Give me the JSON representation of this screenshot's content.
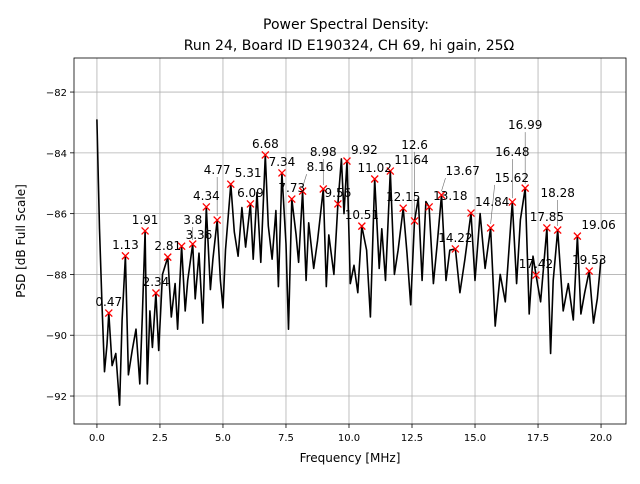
{
  "chart_data": {
    "type": "line",
    "title_line1": "Power Spectral Density:",
    "title_line2": "Run 24, Board ID E190324, CH 69, hi gain, 25Ω",
    "xlabel": "Frequency [MHz]",
    "ylabel": "PSD [dB Full Scale]",
    "xlim": [
      -0.91,
      20.99
    ],
    "ylim": [
      -92.92,
      -80.88
    ],
    "grid": true,
    "xticks": [
      0.0,
      2.5,
      5.0,
      7.5,
      10.0,
      12.5,
      15.0,
      17.5,
      20.0
    ],
    "xtick_labels": [
      "0.0",
      "2.5",
      "5.0",
      "7.5",
      "10.0",
      "12.5",
      "15.0",
      "17.5",
      "20.0"
    ],
    "yticks": [
      -82,
      -84,
      -86,
      -88,
      -90,
      -92
    ],
    "ytick_labels": [
      "−82",
      "−84",
      "−86",
      "−88",
      "−90",
      "−92"
    ],
    "line_color": "#000000",
    "marker_color": "#ff0000",
    "trace": [
      [
        0,
        -82.9
      ],
      [
        0.1,
        -86.5
      ],
      [
        0.2,
        -89.0
      ],
      [
        0.3,
        -91.2
      ],
      [
        0.4,
        -90.3
      ],
      [
        0.47,
        -89.27
      ],
      [
        0.6,
        -91.0
      ],
      [
        0.75,
        -90.6
      ],
      [
        0.9,
        -92.3
      ],
      [
        1.0,
        -89.5
      ],
      [
        1.13,
        -87.39
      ],
      [
        1.25,
        -91.3
      ],
      [
        1.4,
        -90.5
      ],
      [
        1.55,
        -89.8
      ],
      [
        1.7,
        -91.6
      ],
      [
        1.8,
        -89.4
      ],
      [
        1.91,
        -86.57
      ],
      [
        2.0,
        -91.6
      ],
      [
        2.1,
        -89.2
      ],
      [
        2.2,
        -90.4
      ],
      [
        2.34,
        -88.61
      ],
      [
        2.45,
        -90.5
      ],
      [
        2.6,
        -88.0
      ],
      [
        2.81,
        -87.43
      ],
      [
        2.95,
        -89.4
      ],
      [
        3.1,
        -88.3
      ],
      [
        3.2,
        -89.8
      ],
      [
        3.36,
        -87.07
      ],
      [
        3.5,
        -89.2
      ],
      [
        3.6,
        -88.2
      ],
      [
        3.8,
        -87.0
      ],
      [
        3.9,
        -88.8
      ],
      [
        4.05,
        -87.3
      ],
      [
        4.2,
        -89.6
      ],
      [
        4.34,
        -85.78
      ],
      [
        4.5,
        -88.5
      ],
      [
        4.6,
        -87.5
      ],
      [
        4.77,
        -86.21
      ],
      [
        4.9,
        -88.2
      ],
      [
        5.0,
        -89.1
      ],
      [
        5.1,
        -87.2
      ],
      [
        5.31,
        -85.03
      ],
      [
        5.45,
        -86.6
      ],
      [
        5.6,
        -87.4
      ],
      [
        5.75,
        -85.8
      ],
      [
        5.9,
        -87.1
      ],
      [
        6.09,
        -85.68
      ],
      [
        6.2,
        -87.5
      ],
      [
        6.35,
        -85.3
      ],
      [
        6.5,
        -87.6
      ],
      [
        6.68,
        -84.07
      ],
      [
        6.8,
        -86.4
      ],
      [
        6.95,
        -87.5
      ],
      [
        7.1,
        -85.9
      ],
      [
        7.2,
        -88.4
      ],
      [
        7.34,
        -84.66
      ],
      [
        7.5,
        -87.0
      ],
      [
        7.6,
        -89.8
      ],
      [
        7.73,
        -85.52
      ],
      [
        7.9,
        -86.7
      ],
      [
        8.0,
        -87.6
      ],
      [
        8.16,
        -85.26
      ],
      [
        8.3,
        -88.2
      ],
      [
        8.4,
        -86.3
      ],
      [
        8.6,
        -87.8
      ],
      [
        8.75,
        -86.9
      ],
      [
        8.98,
        -85.19
      ],
      [
        9.1,
        -88.4
      ],
      [
        9.2,
        -86.7
      ],
      [
        9.4,
        -88.0
      ],
      [
        9.56,
        -85.68
      ],
      [
        9.7,
        -84.2
      ],
      [
        9.8,
        -86.0
      ],
      [
        9.92,
        -84.27
      ],
      [
        10.05,
        -88.3
      ],
      [
        10.2,
        -87.7
      ],
      [
        10.35,
        -88.6
      ],
      [
        10.51,
        -86.41
      ],
      [
        10.7,
        -87.2
      ],
      [
        10.85,
        -89.4
      ],
      [
        11.02,
        -84.86
      ],
      [
        11.2,
        -87.8
      ],
      [
        11.3,
        -86.5
      ],
      [
        11.45,
        -88.2
      ],
      [
        11.64,
        -84.6
      ],
      [
        11.8,
        -88.0
      ],
      [
        11.95,
        -87.2
      ],
      [
        12.15,
        -85.82
      ],
      [
        12.3,
        -87.3
      ],
      [
        12.45,
        -89.0
      ],
      [
        12.6,
        -86.24
      ],
      [
        12.75,
        -85.5
      ],
      [
        12.9,
        -88.2
      ],
      [
        13.05,
        -85.6
      ],
      [
        13.18,
        -85.78
      ],
      [
        13.35,
        -88.3
      ],
      [
        13.5,
        -87.0
      ],
      [
        13.67,
        -85.39
      ],
      [
        13.85,
        -88.2
      ],
      [
        14.0,
        -87.2
      ],
      [
        14.22,
        -87.16
      ],
      [
        14.4,
        -88.6
      ],
      [
        14.6,
        -87.5
      ],
      [
        14.84,
        -85.98
      ],
      [
        15.0,
        -88.2
      ],
      [
        15.2,
        -86.0
      ],
      [
        15.4,
        -87.8
      ],
      [
        15.62,
        -86.47
      ],
      [
        15.8,
        -89.7
      ],
      [
        16.0,
        -88.0
      ],
      [
        16.2,
        -88.9
      ],
      [
        16.48,
        -85.62
      ],
      [
        16.65,
        -88.3
      ],
      [
        16.8,
        -86.2
      ],
      [
        16.99,
        -85.16
      ],
      [
        17.15,
        -89.3
      ],
      [
        17.3,
        -87.4
      ],
      [
        17.42,
        -88.02
      ],
      [
        17.6,
        -88.9
      ],
      [
        17.85,
        -86.47
      ],
      [
        18.0,
        -90.6
      ],
      [
        18.1,
        -88.2
      ],
      [
        18.28,
        -86.54
      ],
      [
        18.5,
        -89.2
      ],
      [
        18.7,
        -88.3
      ],
      [
        18.9,
        -89.5
      ],
      [
        19.06,
        -86.74
      ],
      [
        19.2,
        -89.3
      ],
      [
        19.35,
        -88.6
      ],
      [
        19.53,
        -87.89
      ],
      [
        19.7,
        -89.6
      ],
      [
        19.85,
        -88.8
      ],
      [
        20.0,
        -87.5
      ]
    ],
    "peaks": [
      {
        "x": 0.47,
        "y": -89.27,
        "label": "0.47"
      },
      {
        "x": 1.13,
        "y": -87.39,
        "label": "1.13"
      },
      {
        "x": 1.91,
        "y": -86.57,
        "label": "1.91"
      },
      {
        "x": 2.34,
        "y": -88.61,
        "label": "2.34"
      },
      {
        "x": 2.81,
        "y": -87.43,
        "label": "2.81"
      },
      {
        "x": 3.36,
        "y": -87.07,
        "label": "3.36"
      },
      {
        "x": 3.8,
        "y": -87.0,
        "label": "3.8"
      },
      {
        "x": 4.34,
        "y": -85.78,
        "label": "4.34"
      },
      {
        "x": 4.77,
        "y": -86.21,
        "label": "4.77"
      },
      {
        "x": 5.31,
        "y": -85.03,
        "label": "5.31"
      },
      {
        "x": 6.09,
        "y": -85.68,
        "label": "6.09"
      },
      {
        "x": 6.68,
        "y": -84.07,
        "label": "6.68"
      },
      {
        "x": 7.34,
        "y": -84.66,
        "label": "7.34"
      },
      {
        "x": 7.73,
        "y": -85.52,
        "label": "7.73"
      },
      {
        "x": 8.16,
        "y": -85.26,
        "label": "8.16"
      },
      {
        "x": 8.98,
        "y": -85.19,
        "label": "8.98"
      },
      {
        "x": 9.56,
        "y": -85.68,
        "label": "9.56"
      },
      {
        "x": 9.92,
        "y": -84.27,
        "label": "9.92"
      },
      {
        "x": 10.51,
        "y": -86.41,
        "label": "10.51"
      },
      {
        "x": 11.02,
        "y": -84.86,
        "label": "11.02"
      },
      {
        "x": 11.64,
        "y": -84.6,
        "label": "11.64"
      },
      {
        "x": 12.15,
        "y": -85.82,
        "label": "12.15"
      },
      {
        "x": 12.6,
        "y": -86.24,
        "label": "12.6"
      },
      {
        "x": 13.18,
        "y": -85.78,
        "label": "13.18"
      },
      {
        "x": 13.67,
        "y": -85.39,
        "label": "13.67"
      },
      {
        "x": 14.22,
        "y": -87.16,
        "label": "14.22"
      },
      {
        "x": 14.84,
        "y": -85.98,
        "label": "14.84"
      },
      {
        "x": 15.62,
        "y": -86.47,
        "label": "15.62"
      },
      {
        "x": 16.48,
        "y": -85.62,
        "label": "16.48"
      },
      {
        "x": 16.99,
        "y": -85.16,
        "label": "16.99"
      },
      {
        "x": 17.42,
        "y": -88.02,
        "label": "17.42"
      },
      {
        "x": 17.85,
        "y": -86.47,
        "label": "17.85"
      },
      {
        "x": 18.28,
        "y": -86.54,
        "label": "18.28"
      },
      {
        "x": 19.06,
        "y": -86.74,
        "label": "19.06"
      },
      {
        "x": 19.53,
        "y": -87.89,
        "label": "19.53"
      }
    ]
  }
}
